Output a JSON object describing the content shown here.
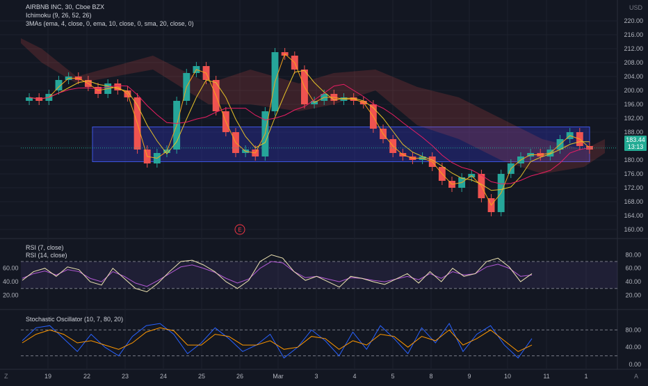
{
  "main": {
    "symbol_line": "AIRBNB INC, 30, Cboe BZX",
    "ichimoku_label": "Ichimoku (9, 26, 52, 26)",
    "mas_label": "3MAs (ema, 4, close, 0, ema, 10, close, 0, sma, 20, close, 0)",
    "currency": "USD",
    "price_ticks": [
      "220.00",
      "216.00",
      "212.00",
      "208.00",
      "204.00",
      "200.00",
      "196.00",
      "192.00",
      "188.00",
      "184.00",
      "180.00",
      "176.00",
      "172.00",
      "168.00",
      "164.00",
      "160.00"
    ],
    "last_price": "183.44",
    "countdown": "13:13",
    "earnings_marker": "E"
  },
  "rsi": {
    "label1": "RSI (7, close)",
    "label2": "RSI (14, close)",
    "right_ticks": [
      "80.00",
      "60.00",
      "40.00",
      "20.00"
    ],
    "left_ticks": [
      "60.00",
      "40.00",
      "20.00"
    ]
  },
  "stoch": {
    "label": "Stochastic Oscillator (10, 7, 80, 20)",
    "right_ticks": [
      "80.00",
      "40.00",
      "0.00"
    ]
  },
  "time_axis": {
    "labels": [
      "19",
      "22",
      "23",
      "24",
      "25",
      "26",
      "Mar",
      "3",
      "4",
      "5",
      "8",
      "9",
      "10",
      "11",
      "1"
    ],
    "left_corner": "Z",
    "right_corner": "A"
  },
  "colors": {
    "background": "#131722",
    "up_candle": "#26a69a",
    "down_candle": "#ef5350",
    "zone_fill": "#2a2fa0",
    "rsi_line": "#f0e6b4",
    "rsi14_line": "#b45ad6",
    "stoch_k": "#2962ff",
    "stoch_d": "#ff9800"
  },
  "chart_data": {
    "type": "candlestick",
    "interval": "30 min",
    "closes": [
      198,
      197,
      199,
      203,
      204,
      203,
      201,
      199,
      202,
      200,
      198,
      183,
      179,
      182,
      183,
      197,
      205,
      207,
      203,
      194,
      188,
      182,
      183,
      181,
      194,
      211,
      210,
      206,
      196,
      197,
      199,
      197,
      198,
      197,
      196,
      189,
      186,
      182,
      181,
      180,
      181,
      178,
      174,
      172,
      175,
      176,
      169,
      165,
      176,
      179,
      181,
      182,
      181,
      183,
      186,
      188,
      184,
      183
    ],
    "opens": [
      197,
      198,
      197,
      200,
      203,
      204,
      203,
      201,
      199,
      202,
      200,
      198,
      183,
      179,
      182,
      183,
      197,
      205,
      207,
      203,
      194,
      188,
      182,
      183,
      181,
      194,
      211,
      210,
      206,
      196,
      197,
      199,
      197,
      198,
      197,
      196,
      189,
      186,
      182,
      181,
      180,
      181,
      178,
      174,
      172,
      175,
      176,
      169,
      165,
      176,
      179,
      181,
      182,
      181,
      183,
      186,
      188,
      184
    ],
    "support_zone": [
      179.5,
      189.5
    ],
    "last_price": 183.44,
    "y_range": [
      158,
      222
    ],
    "rsi7": [
      42,
      55,
      60,
      48,
      62,
      58,
      40,
      35,
      60,
      45,
      30,
      25,
      38,
      55,
      70,
      72,
      65,
      55,
      40,
      30,
      42,
      70,
      80,
      75,
      55,
      42,
      48,
      40,
      32,
      48,
      45,
      40,
      36,
      44,
      52,
      38,
      55,
      40,
      60,
      48,
      52,
      70,
      75,
      62,
      40,
      52
    ],
    "rsi14": [
      45,
      52,
      56,
      50,
      58,
      55,
      45,
      40,
      55,
      48,
      38,
      33,
      42,
      52,
      62,
      65,
      60,
      54,
      45,
      38,
      44,
      60,
      70,
      68,
      55,
      46,
      48,
      44,
      40,
      46,
      45,
      42,
      40,
      44,
      48,
      43,
      52,
      45,
      55,
      50,
      52,
      62,
      66,
      60,
      48,
      50
    ],
    "stoch_k": [
      55,
      85,
      90,
      60,
      30,
      70,
      40,
      20,
      65,
      90,
      95,
      70,
      25,
      50,
      85,
      60,
      30,
      45,
      70,
      15,
      40,
      80,
      55,
      20,
      75,
      35,
      90,
      60,
      25,
      85,
      50,
      95,
      30,
      70,
      90,
      45,
      15,
      60
    ],
    "stoch_d": [
      50,
      70,
      80,
      70,
      50,
      55,
      45,
      35,
      50,
      75,
      85,
      78,
      45,
      45,
      70,
      65,
      45,
      45,
      55,
      35,
      40,
      65,
      60,
      35,
      55,
      45,
      70,
      65,
      40,
      65,
      55,
      80,
      45,
      60,
      80,
      55,
      30,
      45
    ]
  }
}
